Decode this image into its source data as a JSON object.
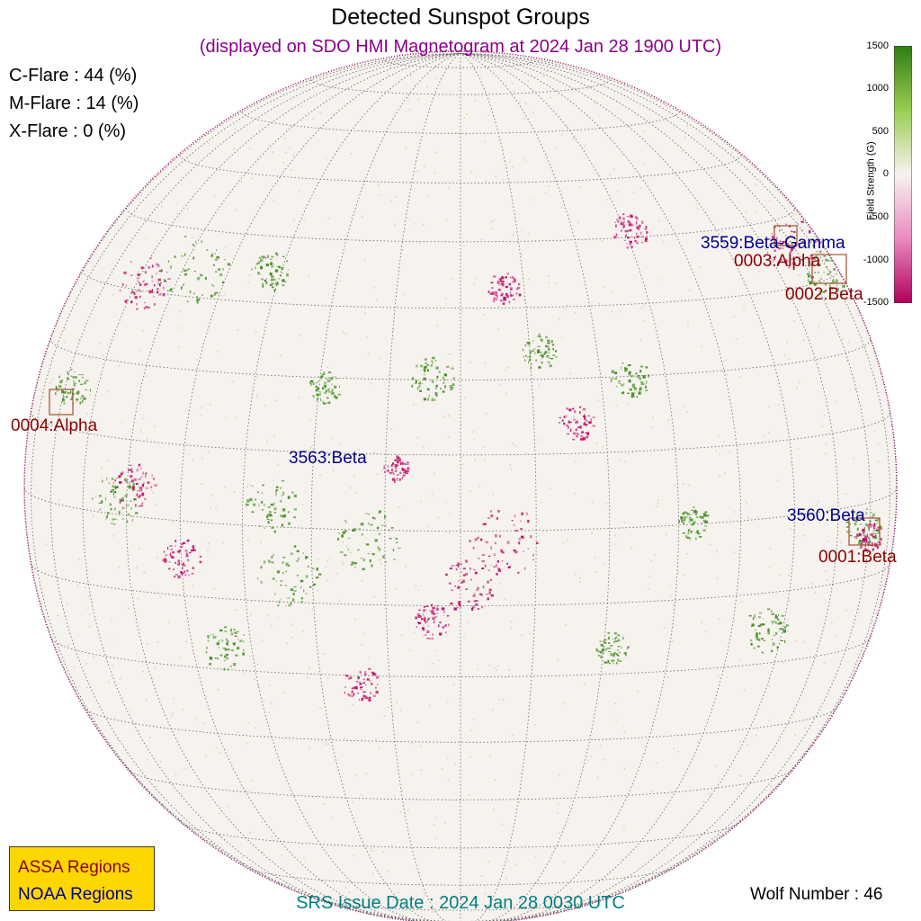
{
  "title": "Detected Sunspot Groups",
  "subtitle": "(displayed on SDO HMI Magnetogram at 2024 Jan 28 1900 UTC)",
  "flares": {
    "c": "C-Flare : 44 (%)",
    "m": "M-Flare : 14 (%)",
    "x": "X-Flare :  0 (%)"
  },
  "regions": {
    "assa": [
      "0001:Beta",
      "0002:Beta",
      "0003:Alpha",
      "0004:Alpha"
    ],
    "noaa": [
      "3559:Beta-Gamma",
      "3560:Beta",
      "3563:Beta"
    ]
  },
  "legend": {
    "assa": "ASSA Regions",
    "noaa": "NOAA Regions"
  },
  "srs_issue": "SRS Issue Date : 2024 Jan 28 0030 UTC",
  "wolf_number": "Wolf Number : 46",
  "colorbar": {
    "title": "Field Strength (G)",
    "ticks": [
      "1500",
      "1000",
      "500",
      "0",
      "-500",
      "-1000",
      "-1500"
    ],
    "colors": {
      "positive": "#2e7d12",
      "negative": "#b0005a",
      "zero": "#f7f3ef"
    }
  }
}
